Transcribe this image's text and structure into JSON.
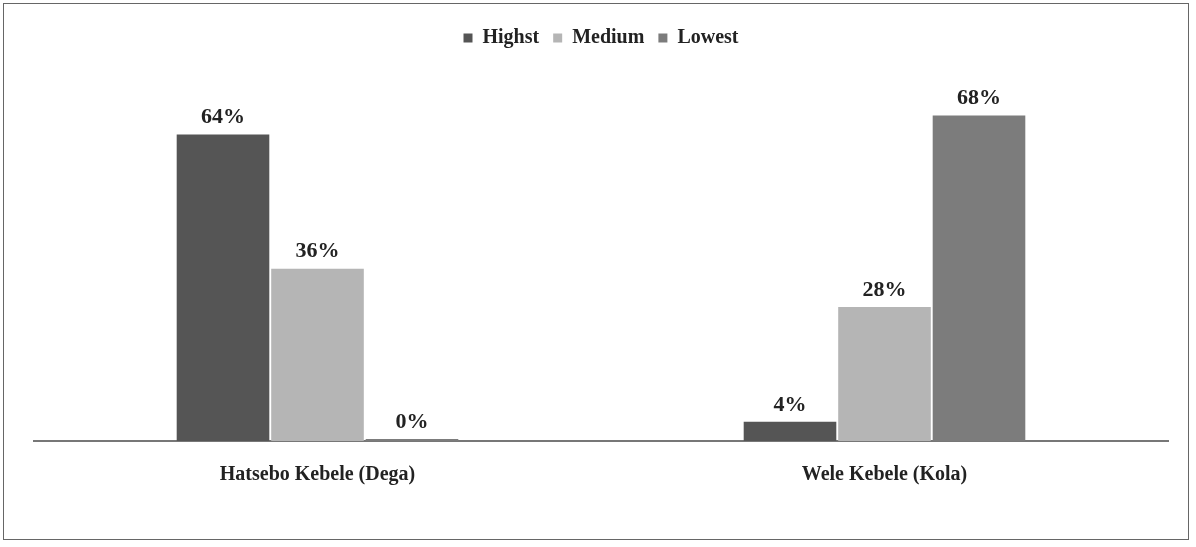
{
  "chart_data": {
    "type": "bar",
    "categories": [
      "Hatsebo Kebele (Dega)",
      "Wele Kebele (Kola)"
    ],
    "series": [
      {
        "name": "Highst",
        "color": "#555555",
        "values": [
          64,
          4
        ],
        "value_labels": [
          "64%",
          "4%"
        ]
      },
      {
        "name": "Medium",
        "color": "#b5b5b5",
        "values": [
          36,
          28
        ],
        "value_labels": [
          "36%",
          "28%"
        ]
      },
      {
        "name": "Lowest",
        "color": "#7c7c7c",
        "values": [
          0,
          68
        ],
        "value_labels": [
          "0%",
          "68%"
        ]
      }
    ],
    "legend": "top",
    "grid": false
  }
}
